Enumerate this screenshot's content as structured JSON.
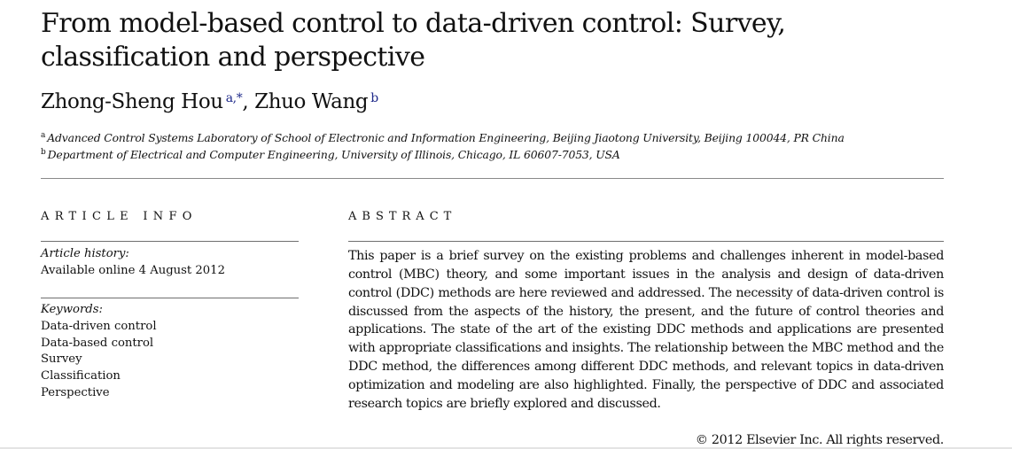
{
  "article": {
    "title": "From model-based control to data-driven control: Survey, classification and perspective",
    "authors": [
      {
        "name": "Zhong-Sheng Hou",
        "marks": "a,*"
      },
      {
        "name": "Zhuo Wang",
        "marks": "b"
      }
    ],
    "author_separator": ", ",
    "affiliations": [
      {
        "mark": "a",
        "text": "Advanced Control Systems Laboratory of School of Electronic and Information Engineering, Beijing Jiaotong University, Beijing 100044, PR China"
      },
      {
        "mark": "b",
        "text": "Department of Electrical and Computer Engineering, University of Illinois, Chicago, IL 60607-7053, USA"
      }
    ],
    "colors": {
      "text": "#111111",
      "author_marks": "#1f2a8a",
      "rule": "#8a8a8a"
    }
  },
  "article_info": {
    "heading": "ARTICLE INFO",
    "history_label": "Article history:",
    "history_value": "Available online 4 August 2012",
    "keywords_label": "Keywords:",
    "keywords": [
      "Data-driven control",
      "Data-based control",
      "Survey",
      "Classification",
      "Perspective"
    ]
  },
  "abstract": {
    "heading": "ABSTRACT",
    "text": "This paper is a brief survey on the existing problems and challenges inherent in model-based control (MBC) theory, and some important issues in the analysis and design of data-driven control (DDC) methods are here reviewed and addressed. The necessity of data-driven control is discussed from the aspects of the history, the present, and the future of control theories and applications. The state of the art of the existing DDC methods and applications are presented with appropriate classifications and insights. The relationship between the MBC method and the DDC method, the differences among different DDC methods, and relevant topics in data-driven optimization and modeling are also highlighted. Finally, the perspective of DDC and associated research topics are briefly explored and discussed.",
    "copyright": "© 2012 Elsevier Inc. All rights reserved."
  }
}
